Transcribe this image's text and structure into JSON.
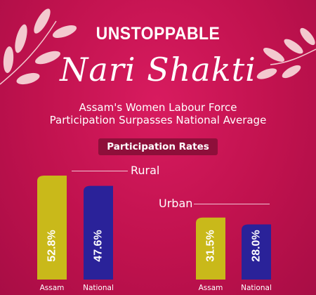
{
  "header": {
    "title": "UNSTOPPABLE",
    "script_title": "Nari Shakti",
    "tagline_line1": "Assam's Women Labour Force",
    "tagline_line2": "Participation Surpasses National Average"
  },
  "badge": {
    "label": "Participation Rates"
  },
  "colors": {
    "background": "#c0124e",
    "assam_bar": "#c9b91a",
    "national_bar": "#2a2299",
    "badge_bg": "#8e0f3a",
    "leaf": "#f3c9cf"
  },
  "chart_data": [
    {
      "type": "bar",
      "title": "Rural",
      "categories": [
        "Assam",
        "National"
      ],
      "values": [
        52.8,
        47.6
      ],
      "value_labels": [
        "52.8%",
        "47.6%"
      ],
      "unit": "%"
    },
    {
      "type": "bar",
      "title": "Urban",
      "categories": [
        "Assam",
        "National"
      ],
      "values": [
        31.5,
        28.0
      ],
      "value_labels": [
        "31.5%",
        "28.0%"
      ],
      "unit": "%"
    }
  ]
}
